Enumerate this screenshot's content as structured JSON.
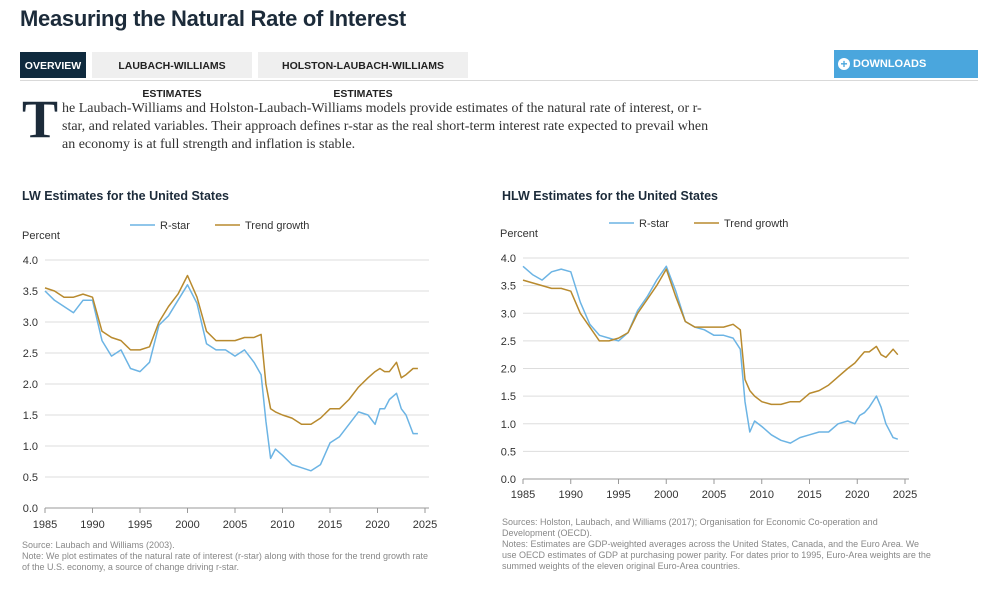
{
  "page": {
    "title": "Measuring the Natural Rate of Interest",
    "tabs": [
      "OVERVIEW",
      "LAUBACH-WILLIAMS ESTIMATES",
      "HOLSTON-LAUBACH-WILLIAMS ESTIMATES"
    ],
    "downloads_label": "DOWNLOADS",
    "dropcap": "T",
    "intro": "he Laubach-Williams and Holston-Laubach-Williams models provide estimates of the natural rate of interest, or r-star, and related variables. Their approach defines r-star as the real short-term interest rate expected to prevail when an economy is at full strength and inflation is stable.",
    "colors": {
      "rstar": "#6cb4e4",
      "trend": "#b88a2e",
      "active_tab": "#0f2a3e",
      "downloads": "#4aa6dd"
    }
  },
  "chart_data": [
    {
      "type": "line",
      "title": "LW Estimates for the United States",
      "ylabel": "Percent",
      "xlabel": "",
      "ylim": [
        0,
        4
      ],
      "xlim": [
        1985,
        2025
      ],
      "yticks": [
        "0.0",
        "0.5",
        "1.0",
        "1.5",
        "2.0",
        "2.5",
        "3.0",
        "3.5",
        "4.0"
      ],
      "xticks": [
        "1985",
        "1990",
        "1995",
        "2000",
        "2005",
        "2010",
        "2015",
        "2020",
        "2025"
      ],
      "legend": "top-center",
      "series": [
        {
          "name": "R-star",
          "x": [
            1985,
            1986,
            1987,
            1988,
            1989,
            1990,
            1991,
            1992,
            1993,
            1994,
            1995,
            1996,
            1997,
            1998,
            1999,
            2000,
            2001,
            2002,
            2003,
            2004,
            2005,
            2006,
            2007,
            2007.75,
            2008.25,
            2008.75,
            2009.25,
            2010,
            2011,
            2012,
            2013,
            2014,
            2015,
            2016,
            2017,
            2018,
            2019,
            2019.75,
            2020.25,
            2020.75,
            2021.25,
            2022,
            2022.5,
            2023,
            2023.75,
            2024.25
          ],
          "values": [
            3.5,
            3.35,
            3.25,
            3.15,
            3.35,
            3.35,
            2.7,
            2.45,
            2.55,
            2.25,
            2.2,
            2.35,
            2.95,
            3.1,
            3.35,
            3.6,
            3.3,
            2.65,
            2.55,
            2.55,
            2.45,
            2.55,
            2.35,
            2.15,
            1.4,
            0.8,
            0.95,
            0.85,
            0.7,
            0.65,
            0.6,
            0.7,
            1.05,
            1.15,
            1.35,
            1.55,
            1.5,
            1.35,
            1.6,
            1.6,
            1.75,
            1.85,
            1.6,
            1.5,
            1.2,
            1.2
          ]
        },
        {
          "name": "Trend growth",
          "x": [
            1985,
            1986,
            1987,
            1988,
            1989,
            1990,
            1991,
            1992,
            1993,
            1994,
            1995,
            1996,
            1997,
            1998,
            1999,
            2000,
            2001,
            2002,
            2003,
            2004,
            2005,
            2006,
            2007,
            2007.75,
            2008.25,
            2008.75,
            2009.25,
            2010,
            2011,
            2012,
            2013,
            2014,
            2015,
            2016,
            2017,
            2018,
            2019,
            2019.75,
            2020.25,
            2020.75,
            2021.25,
            2022,
            2022.5,
            2023,
            2023.75,
            2024.25
          ],
          "values": [
            3.55,
            3.5,
            3.4,
            3.4,
            3.45,
            3.4,
            2.85,
            2.75,
            2.7,
            2.55,
            2.55,
            2.6,
            3.0,
            3.25,
            3.45,
            3.75,
            3.4,
            2.85,
            2.7,
            2.7,
            2.7,
            2.75,
            2.75,
            2.8,
            2.0,
            1.6,
            1.55,
            1.5,
            1.45,
            1.35,
            1.35,
            1.45,
            1.6,
            1.6,
            1.75,
            1.95,
            2.1,
            2.2,
            2.25,
            2.2,
            2.2,
            2.35,
            2.1,
            2.15,
            2.25,
            2.25
          ]
        }
      ],
      "source": "Source: Laubach and Williams (2003).",
      "note": "Note: We plot estimates of the natural rate of interest (r-star) along with those for the trend growth rate of the U.S. economy, a source of change driving r-star."
    },
    {
      "type": "line",
      "title": "HLW Estimates for the United States",
      "ylabel": "Percent",
      "xlabel": "",
      "ylim": [
        0,
        4
      ],
      "xlim": [
        1985,
        2025
      ],
      "yticks": [
        "0.0",
        "0.5",
        "1.0",
        "1.5",
        "2.0",
        "2.5",
        "3.0",
        "3.5",
        "4.0"
      ],
      "xticks": [
        "1985",
        "1990",
        "1995",
        "2000",
        "2005",
        "2010",
        "2015",
        "2020",
        "2025"
      ],
      "legend": "top-center",
      "series": [
        {
          "name": "R-star",
          "x": [
            1985,
            1986,
            1987,
            1988,
            1989,
            1990,
            1991,
            1992,
            1993,
            1994,
            1995,
            1996,
            1997,
            1998,
            1999,
            2000,
            2001,
            2002,
            2003,
            2004,
            2005,
            2006,
            2007,
            2007.75,
            2008.25,
            2008.75,
            2009.25,
            2010,
            2011,
            2012,
            2013,
            2014,
            2015,
            2016,
            2017,
            2018,
            2019,
            2019.75,
            2020.25,
            2020.75,
            2021.25,
            2022,
            2022.5,
            2023,
            2023.75,
            2024.25
          ],
          "values": [
            3.85,
            3.7,
            3.6,
            3.75,
            3.8,
            3.75,
            3.2,
            2.8,
            2.6,
            2.55,
            2.5,
            2.65,
            3.05,
            3.3,
            3.6,
            3.85,
            3.4,
            2.85,
            2.75,
            2.7,
            2.6,
            2.6,
            2.55,
            2.35,
            1.4,
            0.85,
            1.05,
            0.95,
            0.8,
            0.7,
            0.65,
            0.75,
            0.8,
            0.85,
            0.85,
            1.0,
            1.05,
            1.0,
            1.15,
            1.2,
            1.3,
            1.5,
            1.3,
            1.0,
            0.75,
            0.72
          ]
        },
        {
          "name": "Trend growth",
          "x": [
            1985,
            1986,
            1987,
            1988,
            1989,
            1990,
            1991,
            1992,
            1993,
            1994,
            1995,
            1996,
            1997,
            1998,
            1999,
            2000,
            2001,
            2002,
            2003,
            2004,
            2005,
            2006,
            2007,
            2007.75,
            2008.25,
            2008.75,
            2009.25,
            2010,
            2011,
            2012,
            2013,
            2014,
            2015,
            2016,
            2017,
            2018,
            2019,
            2019.75,
            2020.25,
            2020.75,
            2021.25,
            2022,
            2022.5,
            2023,
            2023.75,
            2024.25
          ],
          "values": [
            3.6,
            3.55,
            3.5,
            3.45,
            3.45,
            3.4,
            3.0,
            2.75,
            2.5,
            2.5,
            2.55,
            2.65,
            3.0,
            3.25,
            3.5,
            3.8,
            3.3,
            2.85,
            2.75,
            2.75,
            2.75,
            2.75,
            2.8,
            2.7,
            1.8,
            1.6,
            1.5,
            1.4,
            1.35,
            1.35,
            1.4,
            1.4,
            1.55,
            1.6,
            1.7,
            1.85,
            2.0,
            2.1,
            2.2,
            2.3,
            2.3,
            2.4,
            2.25,
            2.2,
            2.35,
            2.25
          ]
        }
      ],
      "source": "Sources: Holston, Laubach, and Williams (2017); Organisation for Economic Co-operation and Development (OECD).",
      "note": "Notes: Estimates are GDP-weighted averages across the United States, Canada, and the Euro Area. We use OECD estimates of GDP at purchasing power parity. For dates prior to 1995, Euro-Area weights are the summed weights of the eleven original Euro-Area countries."
    }
  ]
}
